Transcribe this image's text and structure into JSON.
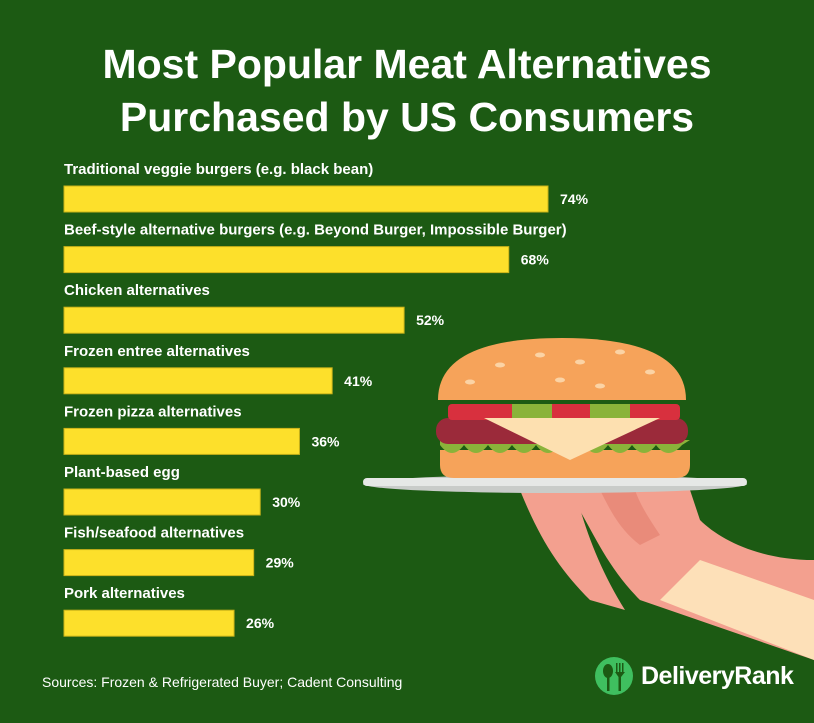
{
  "chart_data": {
    "type": "bar",
    "orientation": "horizontal",
    "title": "Most Popular Meat Alternatives Purchased by US Consumers",
    "title_lines": [
      "Most Popular Meat Alternatives",
      "Purchased by US Consumers"
    ],
    "categories": [
      "Traditional veggie burgers (e.g. black bean)",
      "Beef-style alternative burgers (e.g. Beyond Burger, Impossible Burger)",
      "Chicken alternatives",
      "Frozen entree alternatives",
      "Frozen pizza alternatives",
      "Plant-based egg",
      "Fish/seafood alternatives",
      "Pork alternatives"
    ],
    "values": [
      74,
      68,
      52,
      41,
      36,
      30,
      29,
      26
    ],
    "value_labels": [
      "74%",
      "68%",
      "52%",
      "41%",
      "36%",
      "30%",
      "29%",
      "26%"
    ],
    "unit": "%",
    "xlim": [
      0,
      100
    ],
    "grid": false,
    "bar_color": "#fde02b"
  },
  "footer": {
    "source": "Sources: Frozen & Refrigerated Buyer; Cadent Consulting",
    "brand": "DeliveryRank"
  },
  "colors": {
    "background": "#1c5a13",
    "bar": "#fde02b",
    "logo": "#3fbf5f"
  }
}
